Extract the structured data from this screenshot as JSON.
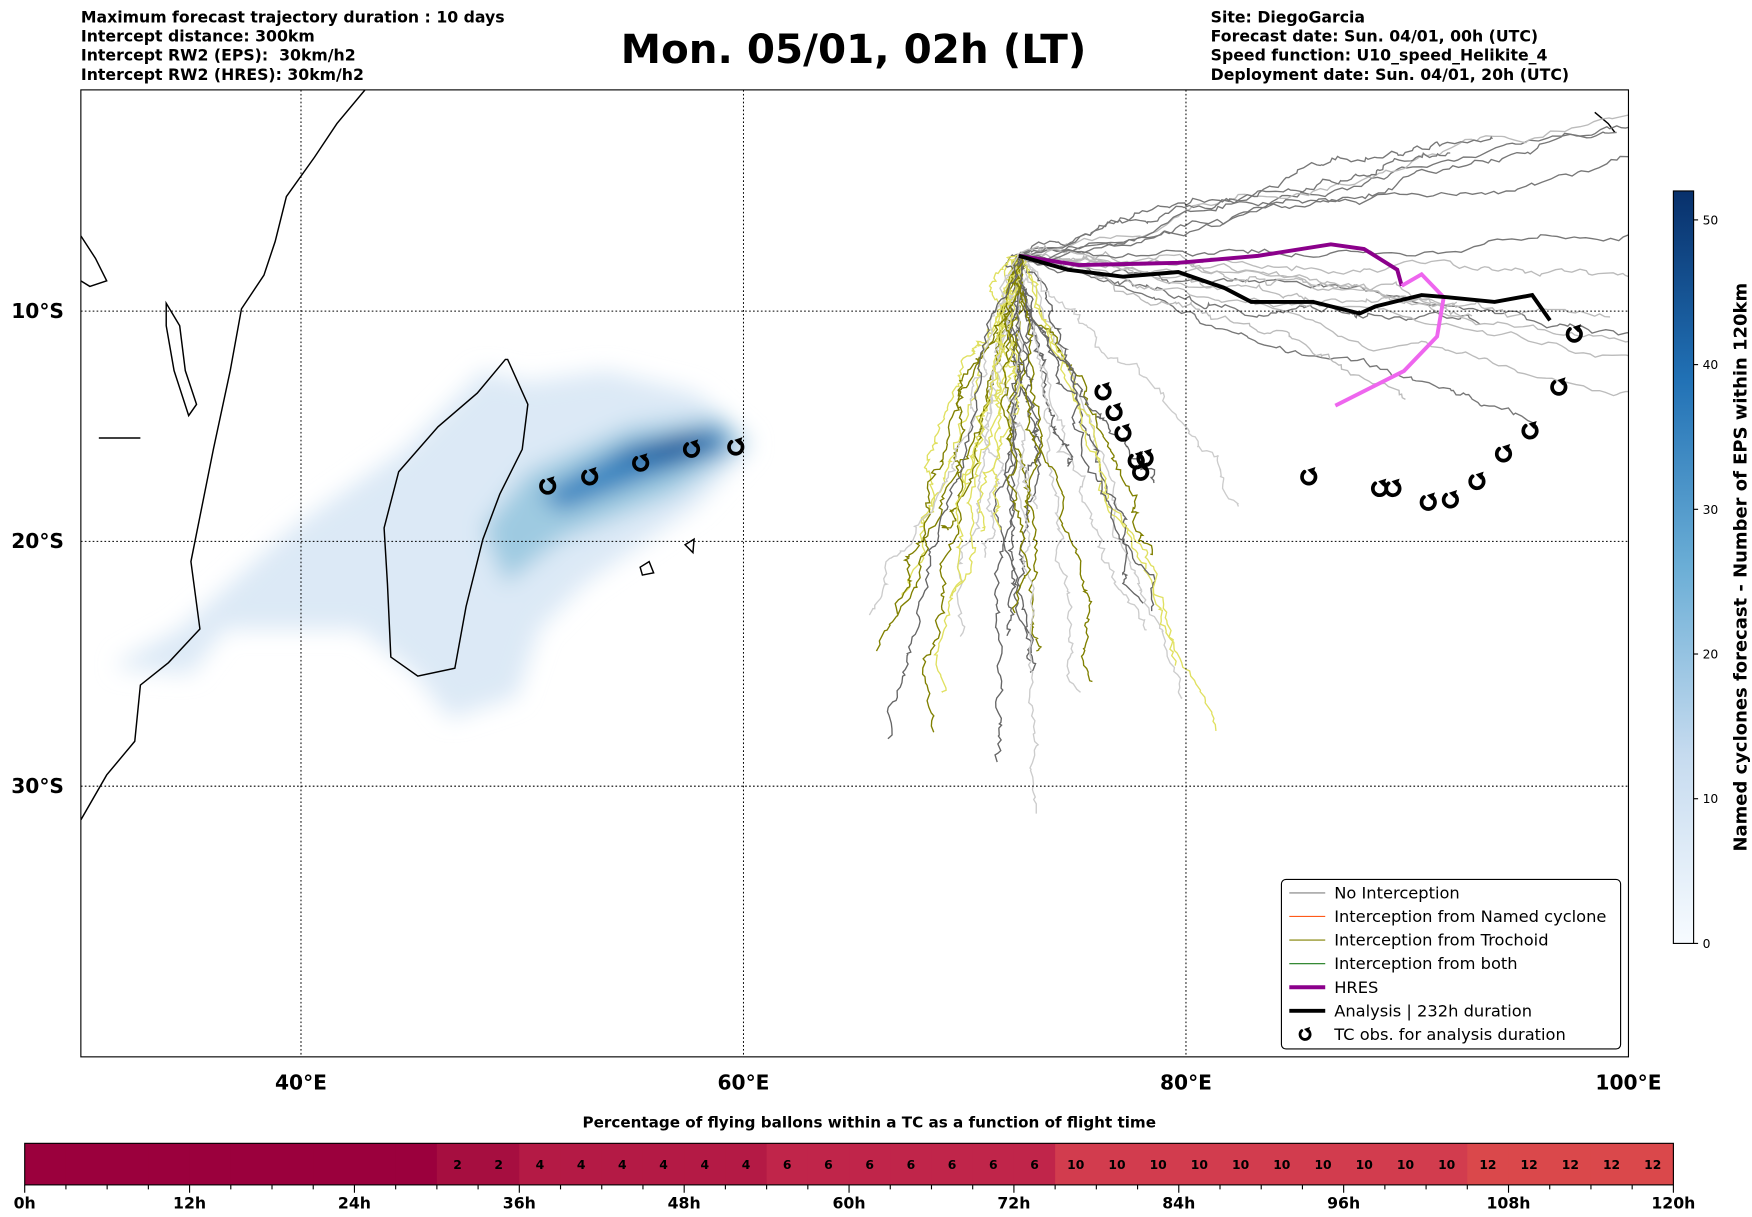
{
  "header": {
    "left": [
      "Maximum forecast trajectory duration : 10 days",
      "Intercept distance: 300km",
      "Intercept RW2 (EPS):  30km/h2",
      "Intercept RW2 (HRES): 30km/h2"
    ],
    "title": "Mon. 05/01, 02h (LT)",
    "right": [
      "Site: DiegoGarcia",
      "Forecast date: Sun. 04/01, 00h (UTC)",
      "Speed function: U10_speed_Helikite_4",
      "Deployment date: Sun. 04/01, 20h (UTC)"
    ]
  },
  "chart_data": [
    {
      "type": "map",
      "x_ticks": [
        {
          "lon": 40,
          "label": "40°E"
        },
        {
          "lon": 60,
          "label": "60°E"
        },
        {
          "lon": 80,
          "label": "80°E"
        },
        {
          "lon": 100,
          "label": "100°E"
        }
      ],
      "y_ticks": [
        {
          "lat": -10,
          "label": "10°S"
        },
        {
          "lat": -20,
          "label": "20°S"
        },
        {
          "lat": -30,
          "label": "30°S"
        }
      ],
      "lon_range": [
        30,
        100
      ],
      "lat_range": [
        -39.5,
        -0.4
      ],
      "grid": true,
      "legend_position": "bottom-right",
      "legend": [
        {
          "label": "No Interception",
          "color": "#808080",
          "width": 1
        },
        {
          "label": "Interception from Named cyclone",
          "color": "#ff5a1a",
          "width": 1
        },
        {
          "label": "Interception from Trochoid",
          "color": "#808000",
          "width": 1
        },
        {
          "label": "Interception from both",
          "color": "#1a7a1a",
          "width": 1
        },
        {
          "label": "HRES",
          "color": "#8b008b",
          "width": 3.5
        },
        {
          "label": "Analysis | 232h duration",
          "color": "#000000",
          "width": 3.5
        },
        {
          "label": "TC obs. for analysis duration",
          "color": "#000000",
          "symbol": "↺"
        }
      ],
      "analysis_track": [
        [
          72.4,
          -7.6
        ],
        [
          74.6,
          -8.2
        ],
        [
          77.1,
          -8.5
        ],
        [
          79.6,
          -8.3
        ],
        [
          81.7,
          -9.0
        ],
        [
          82.9,
          -9.6
        ],
        [
          85.7,
          -9.6
        ],
        [
          87.8,
          -10.1
        ],
        [
          88.5,
          -9.8
        ],
        [
          90.6,
          -9.3
        ],
        [
          91.8,
          -9.4
        ],
        [
          93.9,
          -9.6
        ],
        [
          95.6,
          -9.3
        ],
        [
          96.4,
          -10.4
        ]
      ],
      "hres_track": [
        [
          72.4,
          -7.6
        ],
        [
          75.1,
          -8.0
        ],
        [
          79.6,
          -7.9
        ],
        [
          83.2,
          -7.6
        ],
        [
          86.5,
          -7.1
        ],
        [
          88.0,
          -7.3
        ],
        [
          89.5,
          -8.2
        ],
        [
          89.7,
          -8.9
        ],
        [
          90.6,
          -8.4
        ],
        [
          91.6,
          -9.4
        ],
        [
          91.3,
          -11.1
        ],
        [
          89.8,
          -12.6
        ],
        [
          86.7,
          -14.1
        ]
      ],
      "tc_obs": [
        [
          97.5,
          -11.0
        ],
        [
          96.8,
          -13.3
        ],
        [
          95.5,
          -15.2
        ],
        [
          94.3,
          -16.2
        ],
        [
          93.1,
          -17.4
        ],
        [
          91.9,
          -18.2
        ],
        [
          90.9,
          -18.3
        ],
        [
          89.3,
          -17.7
        ],
        [
          88.7,
          -17.7
        ],
        [
          85.5,
          -17.2
        ],
        [
          77.9,
          -17.0
        ],
        [
          78.1,
          -16.4
        ],
        [
          77.7,
          -16.5
        ],
        [
          77.1,
          -15.3
        ],
        [
          76.7,
          -14.4
        ],
        [
          76.2,
          -13.5
        ],
        [
          59.6,
          -15.9
        ],
        [
          57.6,
          -16.0
        ],
        [
          55.3,
          -16.6
        ],
        [
          53.0,
          -17.2
        ],
        [
          51.1,
          -17.6
        ]
      ]
    },
    {
      "type": "colorbar",
      "label": "Named cyclones forecast - Number of EPS within 120km",
      "range": [
        0,
        52
      ],
      "ticks": [
        "0",
        "10",
        "20",
        "30",
        "40",
        "50"
      ]
    },
    {
      "type": "heatmap",
      "title": "Percentage of flying ballons within a TC as a function of flight time",
      "bin_hours": 3,
      "values": [
        0,
        0,
        0,
        0,
        0,
        0,
        0,
        0,
        0,
        0,
        2,
        2,
        4,
        4,
        4,
        4,
        4,
        4,
        6,
        6,
        6,
        6,
        6,
        6,
        6,
        10,
        10,
        10,
        10,
        10,
        10,
        10,
        10,
        10,
        10,
        12,
        12,
        12,
        12,
        12
      ],
      "x_ticks": [
        "0h",
        "12h",
        "24h",
        "36h",
        "48h",
        "60h",
        "72h",
        "84h",
        "96h",
        "108h",
        "120h"
      ],
      "xlim": [
        0,
        120
      ]
    }
  ]
}
